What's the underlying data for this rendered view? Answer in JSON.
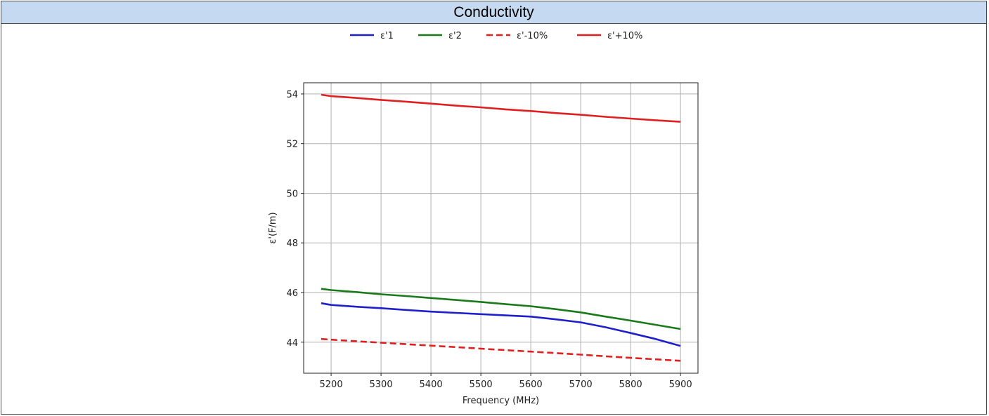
{
  "header": {
    "title": "Conductivity"
  },
  "chart_data": {
    "type": "line",
    "xlabel": "Frequency (MHz)",
    "ylabel": "ε'(F/m)",
    "xlim": [
      5145,
      5935
    ],
    "ylim": [
      42.75,
      54.45
    ],
    "xticks": [
      5200,
      5300,
      5400,
      5500,
      5600,
      5700,
      5800,
      5900
    ],
    "yticks": [
      44,
      46,
      48,
      50,
      52,
      54
    ],
    "grid": true,
    "legend_position": "top-center",
    "x": [
      5180,
      5200,
      5250,
      5300,
      5350,
      5400,
      5450,
      5500,
      5550,
      5600,
      5650,
      5700,
      5750,
      5800,
      5850,
      5900
    ],
    "series": [
      {
        "name": "ε'1",
        "color": "#1f1fcc",
        "dash": false,
        "values": [
          45.57,
          45.5,
          45.43,
          45.37,
          45.3,
          45.23,
          45.18,
          45.13,
          45.08,
          45.03,
          44.92,
          44.8,
          44.6,
          44.37,
          44.13,
          43.85
        ]
      },
      {
        "name": "ε'2",
        "color": "#1a7a1a",
        "dash": false,
        "values": [
          46.15,
          46.1,
          46.02,
          45.93,
          45.86,
          45.78,
          45.7,
          45.62,
          45.53,
          45.45,
          45.33,
          45.2,
          45.03,
          44.87,
          44.7,
          44.53
        ]
      },
      {
        "name": "ε'-10%",
        "color": "#e02020",
        "dash": true,
        "values": [
          44.13,
          44.1,
          44.04,
          43.98,
          43.92,
          43.86,
          43.8,
          43.74,
          43.68,
          43.62,
          43.56,
          43.5,
          43.43,
          43.37,
          43.31,
          43.25
        ]
      },
      {
        "name": "ε'+10%",
        "color": "#e02020",
        "dash": false,
        "values": [
          53.97,
          53.91,
          53.84,
          53.76,
          53.69,
          53.61,
          53.53,
          53.46,
          53.38,
          53.31,
          53.23,
          53.16,
          53.08,
          53.01,
          52.94,
          52.88
        ]
      }
    ]
  }
}
